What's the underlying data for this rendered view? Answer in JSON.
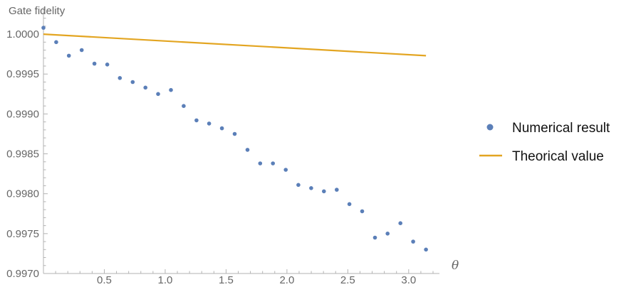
{
  "chart_data": {
    "type": "scatter",
    "title": "",
    "xlabel": "θ",
    "ylabel": "Gate fidelity",
    "xlim": [
      0.0,
      3.2
    ],
    "ylim": [
      0.997,
      1.00025
    ],
    "x_ticks": [
      0.5,
      1.0,
      1.5,
      2.0,
      2.5,
      3.0
    ],
    "x_tick_labels": [
      "0.5",
      "1.0",
      "1.5",
      "2.0",
      "2.5",
      "3.0"
    ],
    "y_ticks": [
      0.997,
      0.9975,
      0.998,
      0.9985,
      0.999,
      0.9995,
      1.0
    ],
    "y_tick_labels": [
      "0.9970",
      "0.9975",
      "0.9980",
      "0.9985",
      "0.9990",
      "0.9995",
      "1.0000"
    ],
    "grid": false,
    "legend_position": "right",
    "series": [
      {
        "name": "Numerical result",
        "kind": "points",
        "color": "#5b7fb8",
        "x": [
          0.0,
          0.105,
          0.209,
          0.314,
          0.419,
          0.524,
          0.628,
          0.733,
          0.838,
          0.942,
          1.047,
          1.152,
          1.257,
          1.361,
          1.466,
          1.571,
          1.676,
          1.78,
          1.885,
          1.99,
          2.094,
          2.199,
          2.304,
          2.409,
          2.513,
          2.618,
          2.723,
          2.827,
          2.932,
          3.037,
          3.142
        ],
        "y": [
          1.00008,
          0.9999,
          0.99973,
          0.9998,
          0.99963,
          0.99962,
          0.99945,
          0.9994,
          0.99933,
          0.99925,
          0.9993,
          0.9991,
          0.99892,
          0.99888,
          0.99882,
          0.99875,
          0.99855,
          0.99838,
          0.99838,
          0.9983,
          0.99811,
          0.99807,
          0.99803,
          0.99805,
          0.99787,
          0.99778,
          0.99745,
          0.9975,
          0.99763,
          0.9974,
          0.9973
        ]
      },
      {
        "name": "Theorical value",
        "kind": "line",
        "color": "#e3a521",
        "x": [
          0.0,
          3.142
        ],
        "y": [
          1.0,
          0.99973
        ]
      }
    ]
  }
}
